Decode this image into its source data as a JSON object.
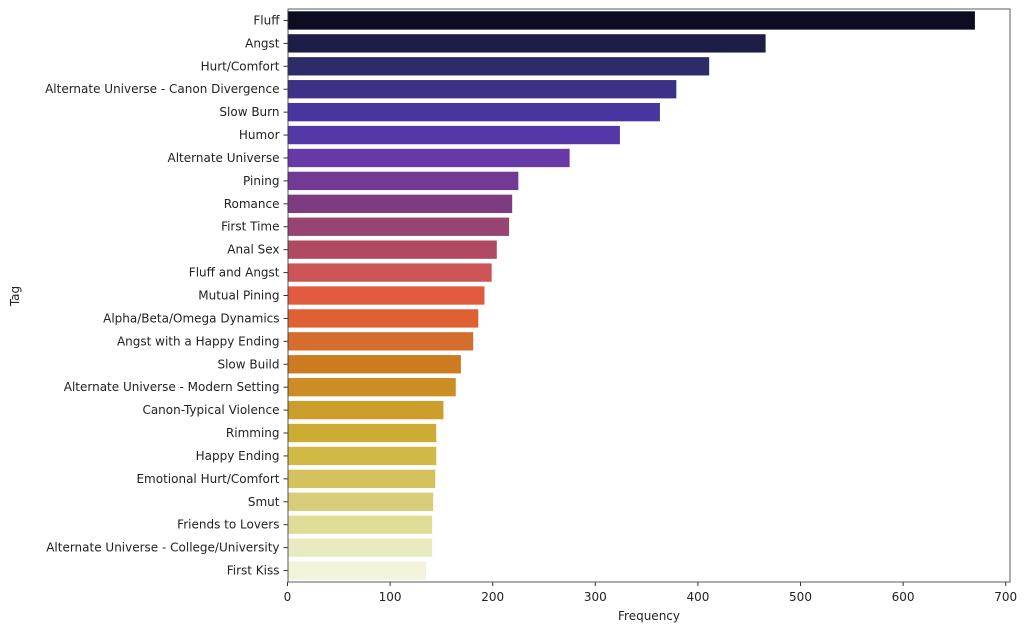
{
  "chart_data": {
    "type": "bar",
    "orientation": "horizontal",
    "title": "",
    "xlabel": "Frequency",
    "ylabel": "Tag",
    "xlim": [
      0,
      710
    ],
    "xticks": [
      0,
      100,
      200,
      300,
      400,
      500,
      600,
      700
    ],
    "grid": false,
    "categories": [
      "Fluff",
      "Angst",
      "Hurt/Comfort",
      "Alternate Universe - Canon Divergence",
      "Slow Burn",
      "Humor",
      "Alternate Universe",
      "Pining",
      "Romance",
      "First Time",
      "Anal Sex",
      "Fluff and Angst",
      "Mutual Pining",
      "Alpha/Beta/Omega Dynamics",
      "Angst with a Happy Ending",
      "Slow Build",
      "Alternate Universe - Modern Setting",
      "Canon-Typical Violence",
      "Rimming",
      "Happy Ending",
      "Emotional Hurt/Comfort",
      "Smut",
      "Friends to Lovers",
      "Alternate Universe - College/University",
      "First Kiss"
    ],
    "values": [
      670,
      466,
      411,
      379,
      363,
      324,
      275,
      225,
      219,
      216,
      204,
      199,
      192,
      186,
      181,
      169,
      164,
      152,
      145,
      145,
      144,
      142,
      141,
      141,
      135
    ],
    "colors": [
      "#0d0d22",
      "#1e1d48",
      "#2d2c68",
      "#3b3186",
      "#4a35a0",
      "#5538a8",
      "#6639a6",
      "#723a94",
      "#7f3b82",
      "#974472",
      "#b04a62",
      "#cc5456",
      "#e25a40",
      "#df6133",
      "#d46e2c",
      "#cc7b20",
      "#cc8e24",
      "#cc9e2c",
      "#ccac32",
      "#d0b944",
      "#d4c35c",
      "#d8cd78",
      "#dfdd96",
      "#eaeac0",
      "#f3f3dc"
    ]
  }
}
